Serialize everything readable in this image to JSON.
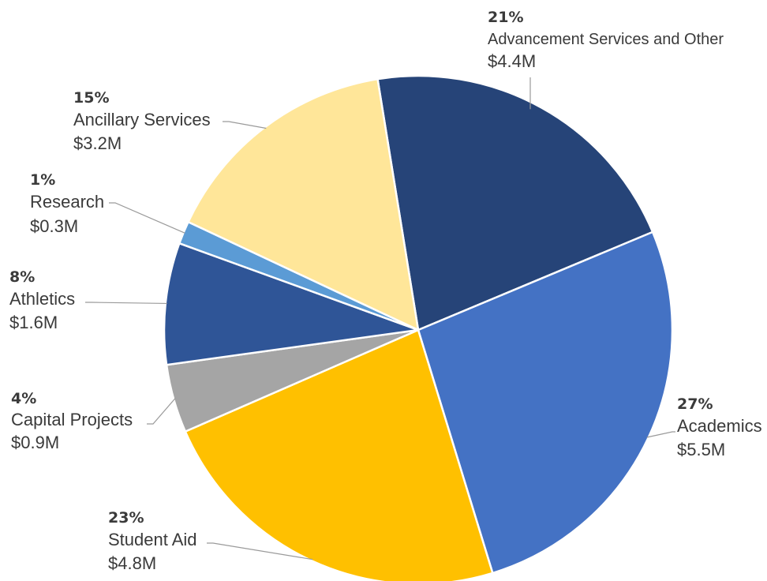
{
  "chart_data": {
    "type": "pie",
    "slices": [
      {
        "pct": "21%",
        "name": "Advancement Services and Other",
        "value": "$4.4M",
        "amount": 4.4,
        "share": 21,
        "color": "#264478"
      },
      {
        "pct": "27%",
        "name": "Academics",
        "value": "$5.5M",
        "amount": 5.5,
        "share": 27,
        "color": "#4472C4"
      },
      {
        "pct": "23%",
        "name": "Student Aid",
        "value": "$4.8M",
        "amount": 4.8,
        "share": 23,
        "color": "#FFC000"
      },
      {
        "pct": "4%",
        "name": "Capital Projects",
        "value": "$0.9M",
        "amount": 0.9,
        "share": 4,
        "color": "#A5A5A5"
      },
      {
        "pct": "8%",
        "name": "Athletics",
        "value": "$1.6M",
        "amount": 1.6,
        "share": 8,
        "color": "#2F5597"
      },
      {
        "pct": "1%",
        "name": "Research",
        "value": "$0.3M",
        "amount": 0.3,
        "share": 1,
        "color": "#5B9BD5"
      },
      {
        "pct": "15%",
        "name": "Ancillary Services",
        "value": "$3.2M",
        "amount": 3.2,
        "share": 15,
        "color": "#FFE699"
      }
    ],
    "start_angle_deg": -9.2,
    "direction": "clockwise",
    "legend": "none"
  }
}
